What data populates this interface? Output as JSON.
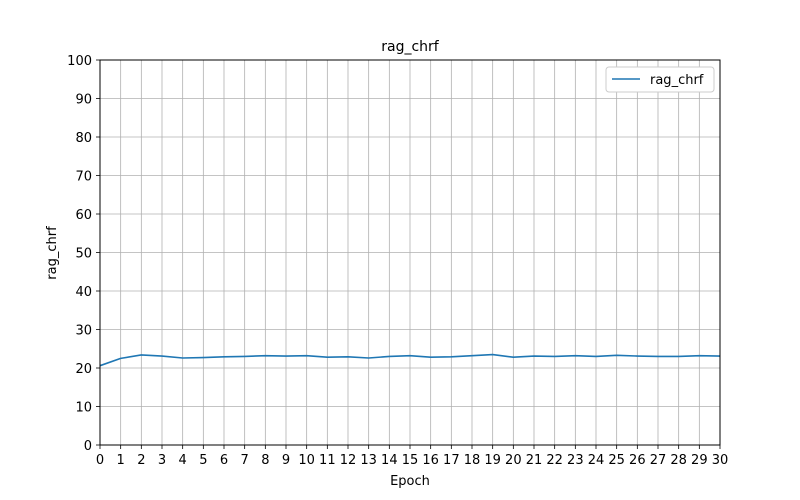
{
  "chart_data": {
    "type": "line",
    "title": "rag_chrf",
    "xlabel": "Epoch",
    "ylabel": "rag_chrf",
    "xlim": [
      0,
      30
    ],
    "ylim": [
      0,
      100
    ],
    "xticks": [
      0,
      1,
      2,
      3,
      4,
      5,
      6,
      7,
      8,
      9,
      10,
      11,
      12,
      13,
      14,
      15,
      16,
      17,
      18,
      19,
      20,
      21,
      22,
      23,
      24,
      25,
      26,
      27,
      28,
      29,
      30
    ],
    "yticks": [
      0,
      10,
      20,
      30,
      40,
      50,
      60,
      70,
      80,
      90,
      100
    ],
    "grid": true,
    "legend_position": "top-right",
    "series": [
      {
        "name": "rag_chrf",
        "color": "#1f77b4",
        "x": [
          0,
          1,
          2,
          3,
          4,
          5,
          6,
          7,
          8,
          9,
          10,
          11,
          12,
          13,
          14,
          15,
          16,
          17,
          18,
          19,
          20,
          21,
          22,
          23,
          24,
          25,
          26,
          27,
          28,
          29,
          30
        ],
        "y": [
          20.6,
          22.5,
          23.4,
          23.1,
          22.6,
          22.7,
          22.9,
          23.0,
          23.2,
          23.1,
          23.2,
          22.8,
          22.9,
          22.6,
          23.0,
          23.2,
          22.8,
          22.9,
          23.2,
          23.5,
          22.8,
          23.1,
          23.0,
          23.2,
          23.0,
          23.3,
          23.1,
          23.0,
          23.0,
          23.2,
          23.1
        ]
      }
    ]
  }
}
